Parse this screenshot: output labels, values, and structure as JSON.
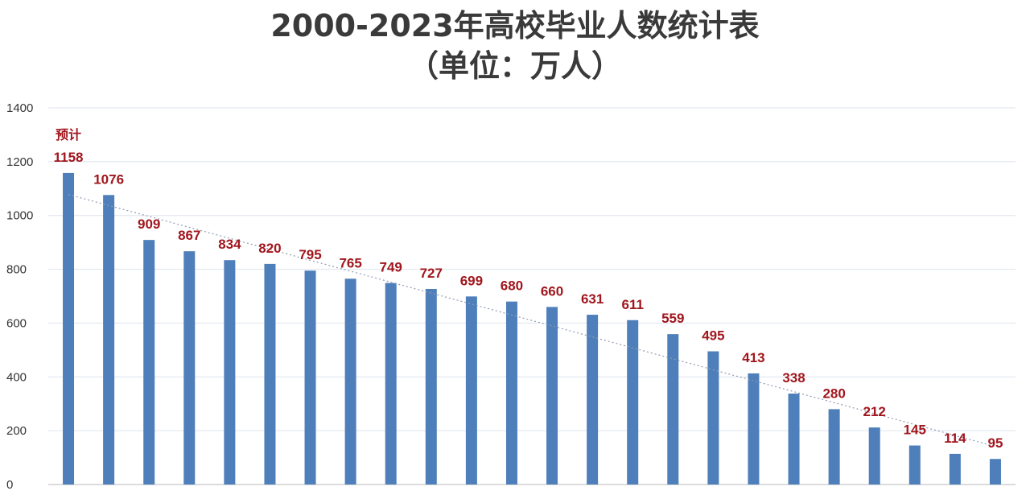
{
  "chart_data": {
    "type": "bar",
    "title": "2000-2023年高校毕业人数统计表",
    "subtitle": "（单位：万人）",
    "forecast_note": "预计",
    "ylim": [
      0,
      1400
    ],
    "yticks": [
      0,
      200,
      400,
      600,
      800,
      1000,
      1200,
      1400
    ],
    "grid": true,
    "legend": "none",
    "values": [
      1158,
      1076,
      909,
      867,
      834,
      820,
      795,
      765,
      749,
      727,
      699,
      680,
      660,
      631,
      611,
      559,
      495,
      413,
      338,
      280,
      212,
      145,
      114,
      95
    ],
    "trendline": "dotted linear"
  },
  "colors": {
    "bar": "#4e7fba",
    "label": "#a1161d",
    "grid": "#dde3ee",
    "trend": "#8f9bb2",
    "axis": "#b8b8b8"
  }
}
